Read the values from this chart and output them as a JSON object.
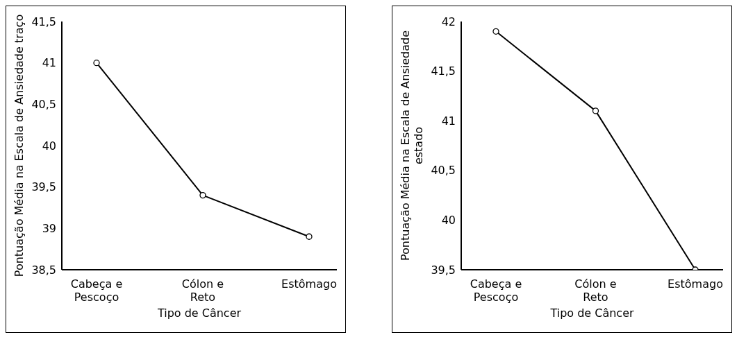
{
  "chart_data": [
    {
      "type": "line",
      "xlabel": "Tipo de Câncer",
      "ylabel": "Pontuação Média na Escala de Ansiedade traço",
      "categories": [
        "Cabeça e Pescoço",
        "Cólon e Reto",
        "Estômago"
      ],
      "series": [
        {
          "color": "#000000",
          "values": [
            41,
            39.4,
            38.9
          ]
        }
      ],
      "ylim": [
        38.5,
        41.5
      ],
      "yticks": [
        {
          "value": 38.5,
          "label": "38,5"
        },
        39,
        {
          "value": 39.5,
          "label": "39,5"
        },
        40,
        {
          "value": 40.5,
          "label": "40,5"
        },
        41,
        {
          "value": 41.5,
          "label": "41,5"
        }
      ],
      "grid": false,
      "legend": false,
      "marker": "circle",
      "line_style": "solid"
    },
    {
      "type": "line",
      "xlabel": "Tipo de Câncer",
      "ylabel": "Pontuação Média na Escala de Ansiedade estado",
      "categories": [
        "Cabeça e Pescoço",
        "Cólon e Reto",
        "Estômago"
      ],
      "series": [
        {
          "color": "#000000",
          "values": [
            41.9,
            41.1,
            39.5
          ]
        }
      ],
      "ylim": [
        39.5,
        42
      ],
      "yticks": [
        {
          "value": 39.5,
          "label": "39,5"
        },
        40,
        {
          "value": 40.5,
          "label": "40,5"
        },
        41,
        {
          "value": 41.5,
          "label": "41,5"
        },
        42
      ],
      "grid": false,
      "legend": false,
      "marker": "circle",
      "line_style": "solid"
    }
  ]
}
